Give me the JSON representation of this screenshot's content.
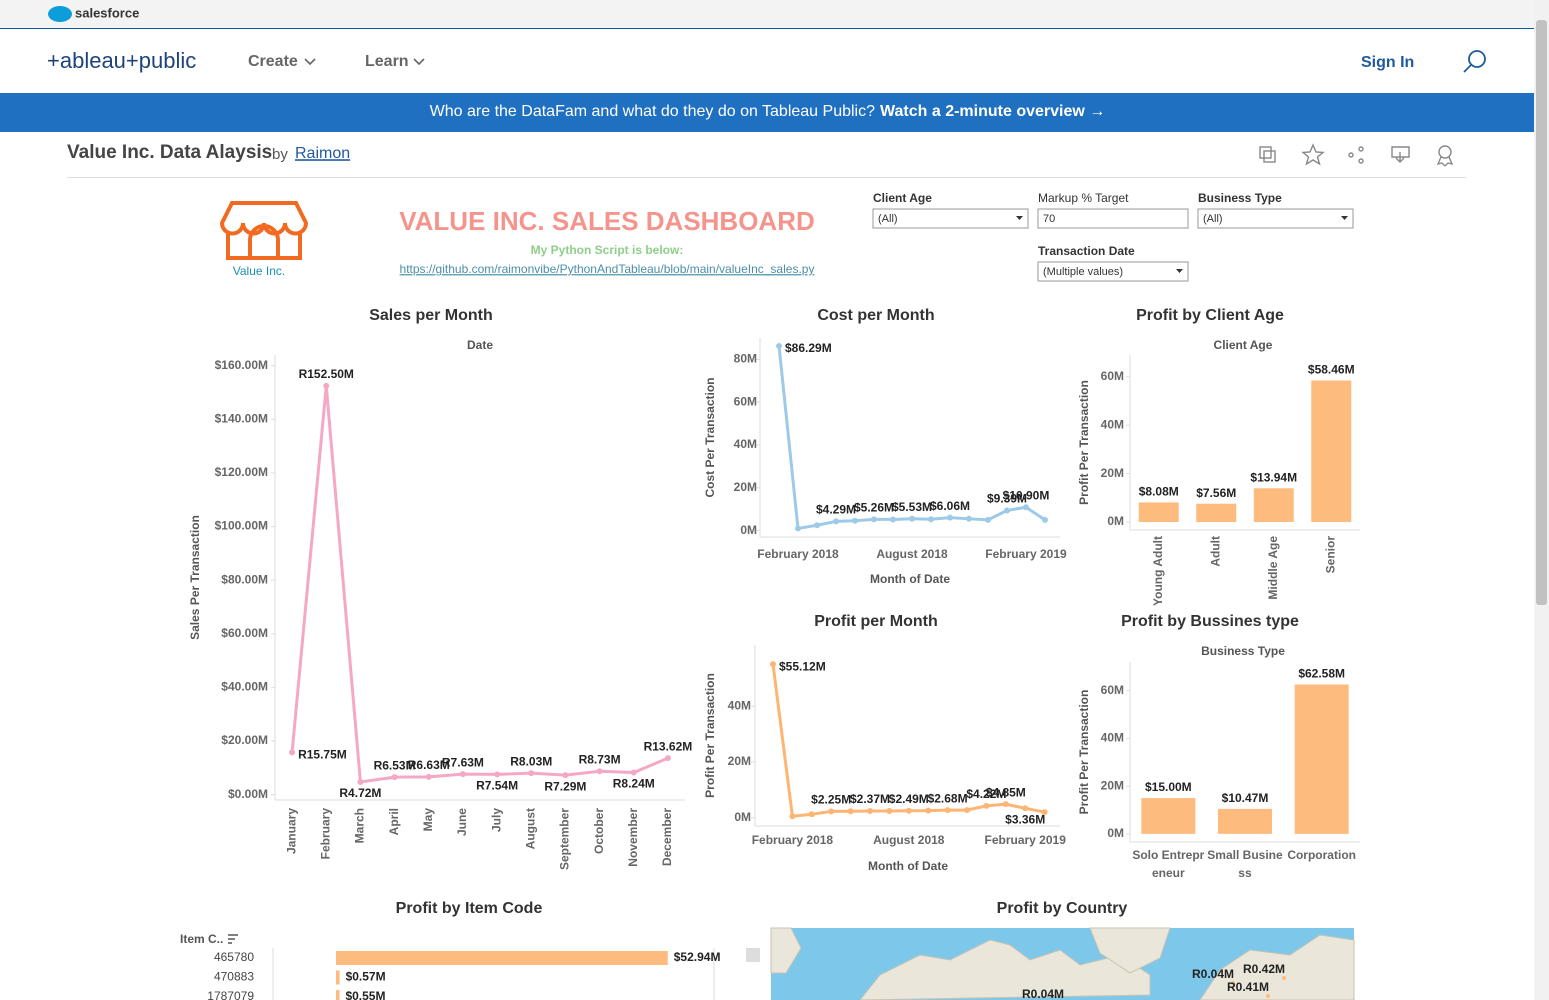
{
  "header": {
    "brand": "salesforce",
    "logo": "+ableau+public",
    "nav": [
      "Create",
      "Learn"
    ],
    "sign_in": "Sign In"
  },
  "banner": {
    "text": "Who are the DataFam and what do they do on Tableau Public?",
    "link": "Watch a 2-minute overview →"
  },
  "viz": {
    "title": "Value Inc. Data Alaysis",
    "by": "by",
    "author": "Raimon"
  },
  "dashboard": {
    "title": "VALUE INC. SALES DASHBOARD",
    "logo_text": "Value Inc.",
    "script_note": "My Python Script is below:",
    "script_link": "https://github.com/raimonvibe/PythonAndTableau/blob/main/valueInc_sales.py",
    "filters": [
      {
        "label": "Client Age",
        "value": "(All)"
      },
      {
        "label": "Markup % Target",
        "value": "70"
      },
      {
        "label": "Business Type",
        "value": "(All)"
      },
      {
        "label": "Transaction Date",
        "value": "(Multiple values)"
      }
    ]
  },
  "chart_data": [
    {
      "type": "line",
      "title": "Sales per Month",
      "subtitle": "Date",
      "ylabel": "Sales Per Transaction",
      "categories": [
        "January",
        "February",
        "March",
        "April",
        "May",
        "June",
        "July",
        "August",
        "September",
        "October",
        "November",
        "December"
      ],
      "values": [
        15.75,
        152.5,
        4.72,
        6.53,
        6.63,
        7.63,
        7.54,
        8.03,
        7.29,
        8.73,
        8.24,
        13.62
      ],
      "value_labels": [
        "R15.75M",
        "R152.50M",
        "R4.72M",
        "R6.53M",
        "R6.63M",
        "R7.63M",
        "R7.54M",
        "R8.03M",
        "R7.29M",
        "R8.73M",
        "R8.24M",
        "R13.62M"
      ],
      "color": "#f5a8c5",
      "ylim": [
        -2,
        164
      ],
      "yticks": [
        {
          "value": 0,
          "label": "$0.00M"
        },
        {
          "value": 20,
          "label": "$20.00M"
        },
        {
          "value": 40,
          "label": "$40.00M"
        },
        {
          "value": 60,
          "label": "$60.00M"
        },
        {
          "value": 80,
          "label": "$80.00M"
        },
        {
          "value": 100,
          "label": "$100.00M"
        },
        {
          "value": 120,
          "label": "$120.00M"
        },
        {
          "value": 140,
          "label": "$140.00M"
        },
        {
          "value": 160,
          "label": "$160.00M"
        }
      ],
      "grid": false
    },
    {
      "type": "line",
      "title": "Cost per Month",
      "ylabel": "Cost Per Transaction",
      "xlabel": "Month of Date",
      "categories": [
        null,
        "February 2018",
        null,
        null,
        null,
        null,
        null,
        "August 2018",
        null,
        null,
        null,
        null,
        null,
        "February 2019",
        null
      ],
      "values": [
        86.29,
        1.0,
        2.5,
        4.29,
        4.6,
        5.26,
        5.2,
        5.53,
        5.3,
        6.06,
        5.5,
        5.0,
        9.39,
        10.9,
        5.0
      ],
      "value_labels": [
        "$86.29M",
        null,
        null,
        "$4.29M",
        null,
        "$5.26M",
        null,
        "$5.53M",
        null,
        "$6.06M",
        null,
        null,
        "$9.39M",
        "$10.90M",
        null
      ],
      "color": "#9ecae8",
      "ylim": [
        -3,
        90
      ],
      "yticks": [
        {
          "value": 0,
          "label": "0M"
        },
        {
          "value": 20,
          "label": "20M"
        },
        {
          "value": 40,
          "label": "40M"
        },
        {
          "value": 60,
          "label": "60M"
        },
        {
          "value": 80,
          "label": "80M"
        }
      ],
      "grid": false
    },
    {
      "type": "bar",
      "title": "Profit by Client Age",
      "subtitle": "Client Age",
      "ylabel": "Profit Per Transaction",
      "categories": [
        "Young Adult",
        "Adult",
        "Middle Age",
        "Senior"
      ],
      "values": [
        8.08,
        7.56,
        13.94,
        58.46
      ],
      "value_labels": [
        "$8.08M",
        "$7.56M",
        "$13.94M",
        "$58.46M"
      ],
      "color": "#fdbc7e",
      "ylim": [
        -3.3,
        69
      ],
      "yticks": [
        {
          "value": 0,
          "label": "0M"
        },
        {
          "value": 20,
          "label": "20M"
        },
        {
          "value": 40,
          "label": "40M"
        },
        {
          "value": 60,
          "label": "60M"
        }
      ],
      "grid": false
    },
    {
      "type": "line",
      "title": "Profit per Month",
      "ylabel": "Profit Per Transaction",
      "xlabel": "Month of Date",
      "categories": [
        null,
        "February 2018",
        null,
        null,
        null,
        null,
        null,
        "August 2018",
        null,
        null,
        null,
        null,
        null,
        "February 2019",
        null
      ],
      "values": [
        55.12,
        0.5,
        1.2,
        2.25,
        2.3,
        2.37,
        2.4,
        2.49,
        2.5,
        2.68,
        2.7,
        4.22,
        4.85,
        3.36,
        2.0
      ],
      "value_labels": [
        "$55.12M",
        null,
        null,
        "$2.25M",
        null,
        "$2.37M",
        null,
        "$2.49M",
        null,
        "$2.68M",
        null,
        "$4.22M",
        "$4.85M",
        "$3.36M",
        null
      ],
      "color": "#fdb574",
      "ylim": [
        -3,
        62
      ],
      "yticks": [
        {
          "value": 0,
          "label": "0M"
        },
        {
          "value": 20,
          "label": "20M"
        },
        {
          "value": 40,
          "label": "40M"
        }
      ],
      "grid": false
    },
    {
      "type": "bar",
      "title": "Profit by Bussines type",
      "subtitle": "Business Type",
      "ylabel": "Profit Per Transaction",
      "categories": [
        "Solo Entrepreneur",
        "Small Business",
        "Corporation"
      ],
      "values": [
        15.0,
        10.47,
        62.58
      ],
      "value_labels": [
        "$15.00M",
        "$10.47M",
        "$62.58M"
      ],
      "color": "#fdbc7e",
      "ylim": [
        -3.4,
        72
      ],
      "yticks": [
        {
          "value": 0,
          "label": "0M"
        },
        {
          "value": 20,
          "label": "20M"
        },
        {
          "value": 40,
          "label": "40M"
        },
        {
          "value": 60,
          "label": "60M"
        }
      ],
      "grid": false
    },
    {
      "type": "barh",
      "title": "Profit by Item Code",
      "header": "Item C..",
      "categories": [
        "465780",
        "470883",
        "1787079"
      ],
      "values": [
        52.94,
        0.57,
        0.55
      ],
      "value_labels": [
        "$52.94M",
        "$0.57M",
        "$0.55M"
      ],
      "color": "#fdbc7e",
      "xlim": [
        0,
        60
      ]
    },
    {
      "type": "map",
      "title": "Profit by Country",
      "values": [
        0.04,
        0.42,
        0.41,
        0.04
      ],
      "value_labels": [
        "R0.04M",
        "R0.42M",
        "R0.41M",
        "R0.04M"
      ]
    }
  ]
}
